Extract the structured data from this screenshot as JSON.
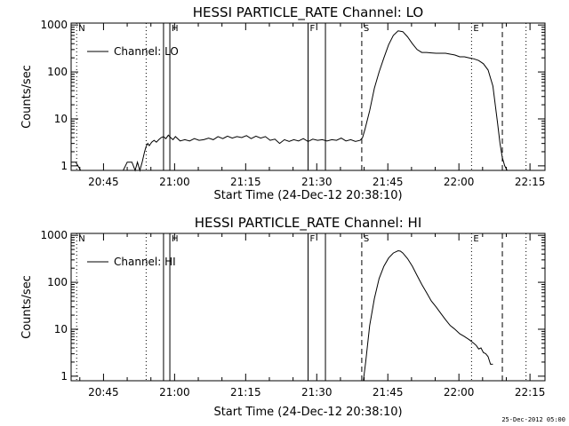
{
  "stamp": "25-Dec-2012 05:00",
  "chart_data": [
    {
      "type": "line",
      "title": "HESSI PARTICLE_RATE Channel: LO",
      "xlabel": "Start Time (24-Dec-12 20:38:10)",
      "ylabel": "Counts/sec",
      "yscale": "log",
      "xlim": [
        "20:38:10",
        "22:18:10"
      ],
      "ylim": [
        0.8,
        1100
      ],
      "x_ticks": [
        "20:45",
        "21:00",
        "21:15",
        "21:30",
        "21:45",
        "22:00",
        "22:15"
      ],
      "y_ticks": [
        "1",
        "10",
        "100",
        "1000"
      ],
      "legend": {
        "label": "Channel: LO",
        "placement": "upper-left"
      },
      "markers": [
        {
          "label": "N",
          "time": "20:39:20",
          "style": "dotted"
        },
        {
          "label": "",
          "time": "20:54:00",
          "style": "dotted"
        },
        {
          "label": "",
          "time": "20:57:40",
          "style": "solid"
        },
        {
          "label": "H",
          "time": "20:59:00",
          "style": "solid"
        },
        {
          "label": "F",
          "time": "21:28:10",
          "style": "solid"
        },
        {
          "label": "",
          "time": "21:31:50",
          "style": "solid"
        },
        {
          "label": "S",
          "time": "21:39:30",
          "style": "dashed"
        },
        {
          "label": "E",
          "time": "22:02:40",
          "style": "dotted"
        },
        {
          "label": "",
          "time": "22:09:10",
          "style": "dashed"
        },
        {
          "label": "",
          "time": "22:14:10",
          "style": "dotted"
        }
      ],
      "series": [
        {
          "name": "Channel: LO",
          "x": [
            "20:38:10",
            "20:39:10",
            "20:40:10",
            "20:41:10",
            "20:41:40",
            "20:49:10",
            "20:50:00",
            "20:51:00",
            "20:51:40",
            "20:52:10",
            "20:52:40",
            "20:53:10",
            "20:53:40",
            "20:54:00",
            "20:54:20",
            "20:54:40",
            "20:55:10",
            "20:55:40",
            "20:56:10",
            "20:56:40",
            "20:57:10",
            "20:57:40",
            "20:58:10",
            "20:58:40",
            "20:59:10",
            "20:59:40",
            "21:00:10",
            "21:01:10",
            "21:02:10",
            "21:03:10",
            "21:04:10",
            "21:05:10",
            "21:06:10",
            "21:07:10",
            "21:08:10",
            "21:09:10",
            "21:10:10",
            "21:11:10",
            "21:12:10",
            "21:13:10",
            "21:14:10",
            "21:15:10",
            "21:16:10",
            "21:17:10",
            "21:18:10",
            "21:19:10",
            "21:20:10",
            "21:21:10",
            "21:22:10",
            "21:23:10",
            "21:24:10",
            "21:25:10",
            "21:26:10",
            "21:27:10",
            "21:28:10",
            "21:29:10",
            "21:30:10",
            "21:31:10",
            "21:32:10",
            "21:33:10",
            "21:34:10",
            "21:35:10",
            "21:36:10",
            "21:37:10",
            "21:38:10",
            "21:39:10",
            "21:39:40",
            "21:40:10",
            "21:41:10",
            "21:42:10",
            "21:43:10",
            "21:44:10",
            "21:45:10",
            "21:46:10",
            "21:47:10",
            "21:48:10",
            "21:49:10",
            "21:50:10",
            "21:51:10",
            "21:52:10",
            "21:53:10",
            "21:54:10",
            "21:55:10",
            "21:56:10",
            "21:57:10",
            "21:58:10",
            "21:59:10",
            "22:00:10",
            "22:01:10",
            "22:02:10",
            "22:03:10",
            "22:04:10",
            "22:05:10",
            "22:06:10",
            "22:07:10",
            "22:08:10",
            "22:08:40",
            "22:09:10",
            "22:09:40",
            "22:10:10",
            "22:10:40",
            "22:11:10",
            "22:13:40",
            "22:14:10"
          ],
          "values": [
            1.2,
            1.2,
            0.8,
            0.8,
            0.8,
            0.8,
            1.2,
            1.2,
            0.8,
            1.2,
            0.8,
            1.2,
            2.0,
            2.6,
            3.0,
            2.7,
            3.2,
            3.5,
            3.2,
            3.6,
            4.0,
            4.2,
            3.8,
            4.5,
            4.0,
            3.6,
            4.2,
            3.4,
            3.6,
            3.4,
            3.8,
            3.5,
            3.6,
            3.9,
            3.6,
            4.2,
            3.8,
            4.3,
            3.9,
            4.2,
            4.0,
            4.4,
            3.8,
            4.3,
            3.9,
            4.2,
            3.5,
            3.7,
            3.0,
            3.6,
            3.3,
            3.6,
            3.4,
            3.8,
            3.3,
            3.7,
            3.5,
            3.6,
            3.4,
            3.6,
            3.5,
            3.9,
            3.4,
            3.6,
            3.3,
            3.5,
            4.0,
            6.0,
            15,
            45,
            100,
            200,
            380,
            600,
            750,
            720,
            560,
            400,
            300,
            260,
            260,
            255,
            250,
            250,
            250,
            240,
            230,
            210,
            210,
            200,
            190,
            175,
            150,
            110,
            50,
            8,
            3,
            1.5,
            1.0,
            0.8,
            0.8,
            0.8,
            0.8,
            0.8
          ]
        }
      ]
    },
    {
      "type": "line",
      "title": "HESSI PARTICLE_RATE Channel: HI",
      "xlabel": "Start Time (24-Dec-12 20:38:10)",
      "ylabel": "Counts/sec",
      "yscale": "log",
      "xlim": [
        "20:38:10",
        "22:18:10"
      ],
      "ylim": [
        0.8,
        1100
      ],
      "x_ticks": [
        "20:45",
        "21:00",
        "21:15",
        "21:30",
        "21:45",
        "22:00",
        "22:15"
      ],
      "y_ticks": [
        "1",
        "10",
        "100",
        "1000"
      ],
      "legend": {
        "label": "Channel: HI",
        "placement": "upper-left"
      },
      "markers": [
        {
          "label": "N",
          "time": "20:39:20",
          "style": "dotted"
        },
        {
          "label": "",
          "time": "20:54:00",
          "style": "dotted"
        },
        {
          "label": "",
          "time": "20:57:40",
          "style": "solid"
        },
        {
          "label": "H",
          "time": "20:59:00",
          "style": "solid"
        },
        {
          "label": "F",
          "time": "21:28:10",
          "style": "solid"
        },
        {
          "label": "",
          "time": "21:31:50",
          "style": "solid"
        },
        {
          "label": "S",
          "time": "21:39:30",
          "style": "dashed"
        },
        {
          "label": "E",
          "time": "22:02:40",
          "style": "dotted"
        },
        {
          "label": "",
          "time": "22:09:10",
          "style": "dashed"
        },
        {
          "label": "",
          "time": "22:14:10",
          "style": "dotted"
        }
      ],
      "series": [
        {
          "name": "Channel: HI",
          "x": [
            "21:39:50",
            "21:40:20",
            "21:41:10",
            "21:42:10",
            "21:43:10",
            "21:44:10",
            "21:45:10",
            "21:46:10",
            "21:47:10",
            "21:47:40",
            "21:48:10",
            "21:49:10",
            "21:50:10",
            "21:51:10",
            "21:52:10",
            "21:53:10",
            "21:54:10",
            "21:55:10",
            "21:56:10",
            "21:57:10",
            "21:58:10",
            "21:59:10",
            "22:00:10",
            "22:01:10",
            "22:02:10",
            "22:03:10",
            "22:03:40",
            "22:04:10",
            "22:04:40",
            "22:05:10",
            "22:05:40",
            "22:06:10",
            "22:06:40",
            "22:07:10"
          ],
          "values": [
            0.8,
            2.0,
            12,
            45,
            120,
            220,
            330,
            420,
            470,
            460,
            420,
            320,
            220,
            140,
            90,
            60,
            40,
            30,
            22,
            16,
            12,
            10,
            8,
            7,
            6,
            5,
            4.5,
            3.8,
            4.0,
            3.2,
            3.0,
            2.6,
            1.8,
            1.8
          ]
        }
      ]
    }
  ]
}
